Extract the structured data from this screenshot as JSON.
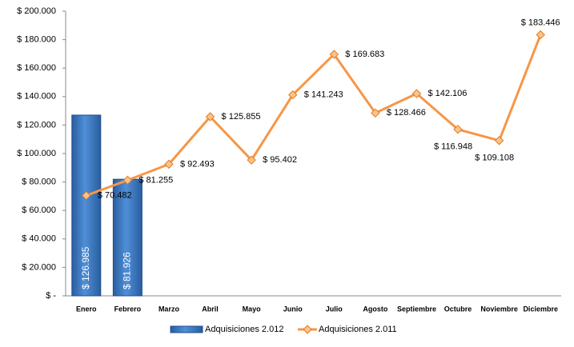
{
  "chart_data": {
    "type": "bar",
    "categories": [
      "Enero",
      "Febrero",
      "Marzo",
      "Abril",
      "Mayo",
      "Junio",
      "Julio",
      "Agosto",
      "Septiembre",
      "Octubre",
      "Noviembre",
      "Diciembre"
    ],
    "series": [
      {
        "name": "Adquisiciones 2.012",
        "type": "bar",
        "color": "#3a78c3",
        "values": [
          126985,
          81926,
          null,
          null,
          null,
          null,
          null,
          null,
          null,
          null,
          null,
          null
        ],
        "value_labels": [
          "$ 126.985",
          "$ 81.926",
          null,
          null,
          null,
          null,
          null,
          null,
          null,
          null,
          null,
          null
        ]
      },
      {
        "name": "Adquisiciones 2.011",
        "type": "line",
        "color": "#f79646",
        "values": [
          70482,
          81255,
          92493,
          125855,
          95402,
          141243,
          169683,
          128466,
          142106,
          116948,
          109108,
          183446
        ],
        "value_labels": [
          "$ 70.482",
          "$ 81.255",
          "$ 92.493",
          "$ 125.855",
          "$ 95.402",
          "$ 141.243",
          "$ 169.683",
          "$ 128.466",
          "$ 142.106",
          "$ 116.948",
          "$ 109.108",
          "$ 183.446"
        ]
      }
    ],
    "ylim": [
      0,
      200000
    ],
    "yticks": [
      {
        "value": 0,
        "label": "$ -"
      },
      {
        "value": 20000,
        "label": "$ 20.000"
      },
      {
        "value": 40000,
        "label": "$ 40.000"
      },
      {
        "value": 60000,
        "label": "$ 60.000"
      },
      {
        "value": 80000,
        "label": "$ 80.000"
      },
      {
        "value": 100000,
        "label": "$ 100.000"
      },
      {
        "value": 120000,
        "label": "$ 120.000"
      },
      {
        "value": 140000,
        "label": "$ 140.000"
      },
      {
        "value": 160000,
        "label": "$ 160.000"
      },
      {
        "value": 180000,
        "label": "$ 180.000"
      },
      {
        "value": 200000,
        "label": "$ 200.000"
      }
    ],
    "grid": false,
    "legend": "bottom"
  }
}
